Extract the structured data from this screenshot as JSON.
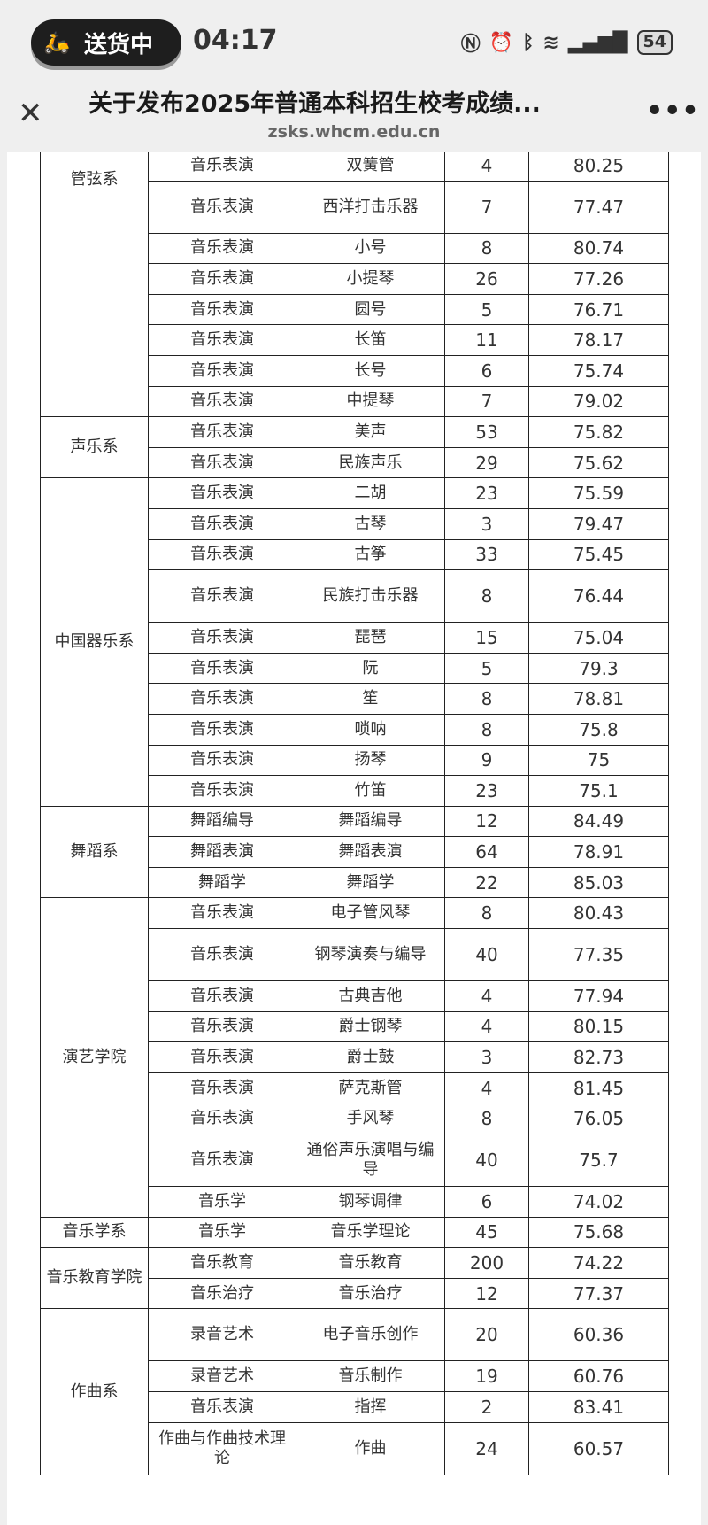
{
  "status_bar": {
    "pill_label": "送货中",
    "pill_icon": "courier-icon",
    "time": "04:17",
    "battery": "54",
    "icons": [
      "nfc-icon",
      "alarm-icon",
      "bluetooth-icon",
      "wifi-icon",
      "signal-icon",
      "battery-icon"
    ]
  },
  "header": {
    "title": "关于发布2025年普通本科招生校考成绩...",
    "url": "zsks.whcm.edu.cn",
    "close_icon": "close-icon",
    "more_icon": "more-icon"
  },
  "table": {
    "groups": [
      {
        "dept": "管弦系",
        "rows": [
          [
            "音乐表演",
            "双簧管",
            "4",
            "80.25"
          ],
          [
            "音乐表演",
            "西洋打击乐器",
            "7",
            "77.47"
          ],
          [
            "音乐表演",
            "小号",
            "8",
            "80.74"
          ],
          [
            "音乐表演",
            "小提琴",
            "26",
            "77.26"
          ],
          [
            "音乐表演",
            "圆号",
            "5",
            "76.71"
          ],
          [
            "音乐表演",
            "长笛",
            "11",
            "78.17"
          ],
          [
            "音乐表演",
            "长号",
            "6",
            "75.74"
          ],
          [
            "音乐表演",
            "中提琴",
            "7",
            "79.02"
          ]
        ]
      },
      {
        "dept": "声乐系",
        "rows": [
          [
            "音乐表演",
            "美声",
            "53",
            "75.82"
          ],
          [
            "音乐表演",
            "民族声乐",
            "29",
            "75.62"
          ]
        ]
      },
      {
        "dept": "中国器乐系",
        "rows": [
          [
            "音乐表演",
            "二胡",
            "23",
            "75.59"
          ],
          [
            "音乐表演",
            "古琴",
            "3",
            "79.47"
          ],
          [
            "音乐表演",
            "古筝",
            "33",
            "75.45"
          ],
          [
            "音乐表演",
            "民族打击乐器",
            "8",
            "76.44"
          ],
          [
            "音乐表演",
            "琵琶",
            "15",
            "75.04"
          ],
          [
            "音乐表演",
            "阮",
            "5",
            "79.3"
          ],
          [
            "音乐表演",
            "笙",
            "8",
            "78.81"
          ],
          [
            "音乐表演",
            "唢呐",
            "8",
            "75.8"
          ],
          [
            "音乐表演",
            "扬琴",
            "9",
            "75"
          ],
          [
            "音乐表演",
            "竹笛",
            "23",
            "75.1"
          ]
        ]
      },
      {
        "dept": "舞蹈系",
        "rows": [
          [
            "舞蹈编导",
            "舞蹈编导",
            "12",
            "84.49"
          ],
          [
            "舞蹈表演",
            "舞蹈表演",
            "64",
            "78.91"
          ],
          [
            "舞蹈学",
            "舞蹈学",
            "22",
            "85.03"
          ]
        ]
      },
      {
        "dept": "演艺学院",
        "rows": [
          [
            "音乐表演",
            "电子管风琴",
            "8",
            "80.43"
          ],
          [
            "音乐表演",
            "钢琴演奏与编导",
            "40",
            "77.35"
          ],
          [
            "音乐表演",
            "古典吉他",
            "4",
            "77.94"
          ],
          [
            "音乐表演",
            "爵士钢琴",
            "4",
            "80.15"
          ],
          [
            "音乐表演",
            "爵士鼓",
            "3",
            "82.73"
          ],
          [
            "音乐表演",
            "萨克斯管",
            "4",
            "81.45"
          ],
          [
            "音乐表演",
            "手风琴",
            "8",
            "76.05"
          ],
          [
            "音乐表演",
            "通俗声乐演唱与编导",
            "40",
            "75.7"
          ],
          [
            "音乐学",
            "钢琴调律",
            "6",
            "74.02"
          ]
        ]
      },
      {
        "dept": "音乐学系",
        "rows": [
          [
            "音乐学",
            "音乐学理论",
            "45",
            "75.68"
          ]
        ]
      },
      {
        "dept": "音乐教育学院",
        "rows": [
          [
            "音乐教育",
            "音乐教育",
            "200",
            "74.22"
          ],
          [
            "音乐治疗",
            "音乐治疗",
            "12",
            "77.37"
          ]
        ]
      },
      {
        "dept": "作曲系",
        "rows": [
          [
            "录音艺术",
            "电子音乐创作",
            "20",
            "60.36"
          ],
          [
            "录音艺术",
            "音乐制作",
            "19",
            "60.76"
          ],
          [
            "音乐表演",
            "指挥",
            "2",
            "83.41"
          ],
          [
            "作曲与作曲技术理论",
            "作曲",
            "24",
            "60.57"
          ]
        ]
      }
    ]
  }
}
